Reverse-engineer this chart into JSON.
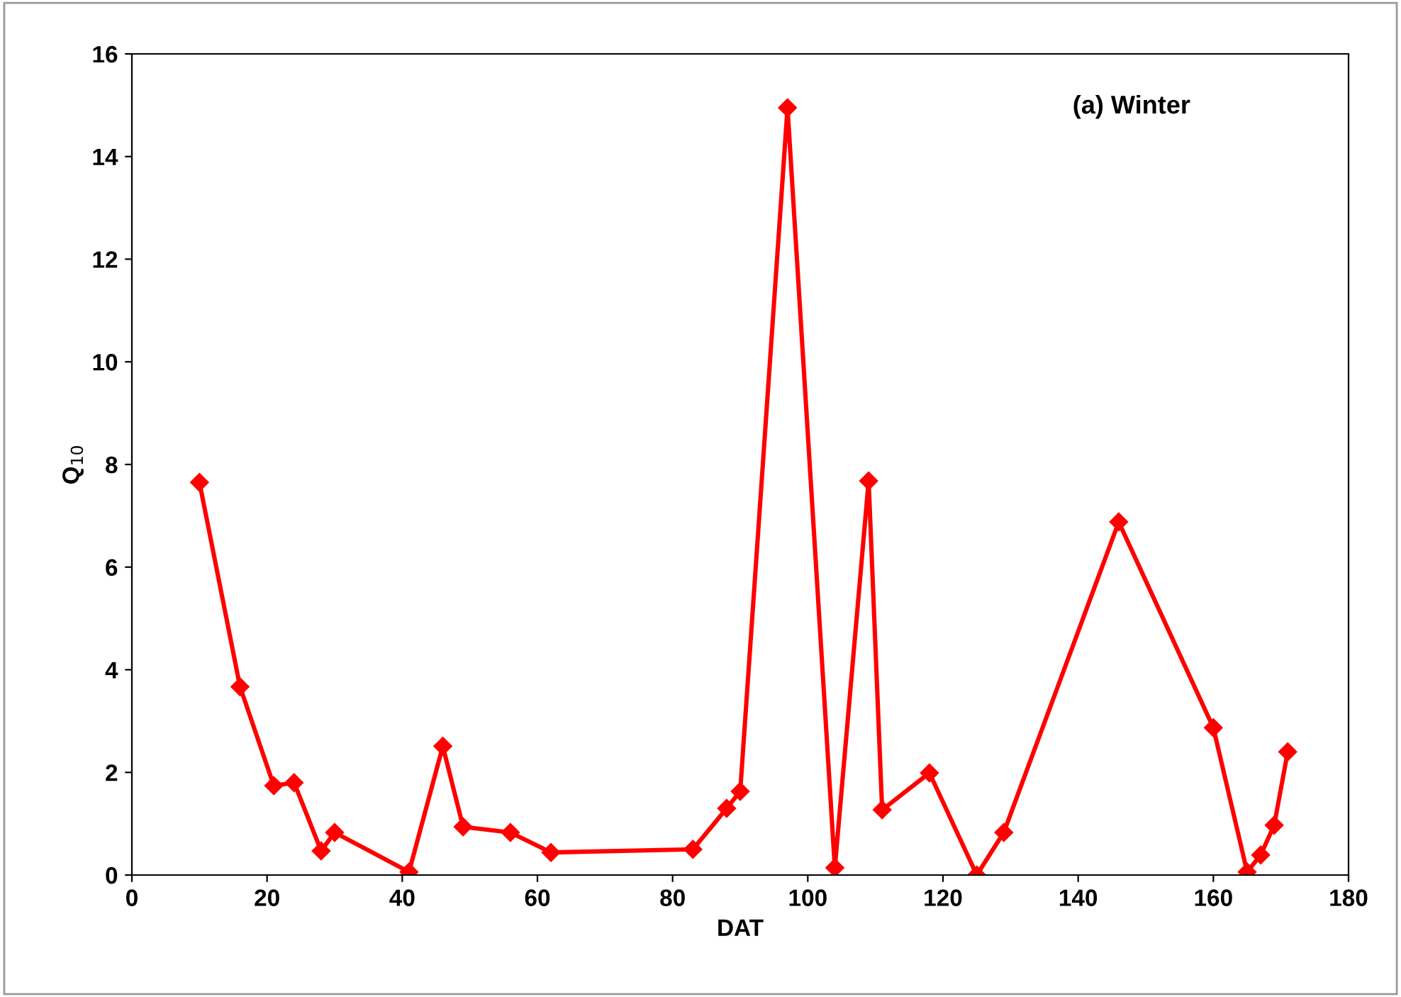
{
  "chart_data": {
    "type": "line",
    "xlabel": "DAT",
    "ylabel": "Q$_{10}$",
    "annotations": [
      "(a) Winter"
    ],
    "x": [
      10,
      16,
      21,
      24,
      28,
      30,
      41,
      46,
      49,
      56,
      62,
      83,
      88,
      90,
      97,
      104,
      109,
      111,
      118,
      125,
      129,
      146,
      160,
      165,
      167,
      169,
      171
    ],
    "series": [
      {
        "color": "#ff0000",
        "values": [
          7.65,
          3.67,
          1.74,
          1.8,
          0.47,
          0.83,
          0.06,
          2.51,
          0.94,
          0.83,
          0.44,
          0.5,
          1.3,
          1.63,
          14.95,
          0.14,
          7.68,
          1.27,
          1.99,
          0.0,
          0.83,
          6.88,
          2.87,
          0.06,
          0.39,
          0.97,
          2.4
        ]
      }
    ],
    "xlim": [
      0,
      180
    ],
    "xticks": [
      0,
      20,
      40,
      60,
      80,
      100,
      120,
      140,
      160,
      180
    ],
    "ylim": [
      0,
      16
    ],
    "yticks": [
      0,
      2,
      4,
      6,
      8,
      10,
      12,
      14,
      16
    ],
    "grid": false,
    "legend": false,
    "marker": "diamond",
    "line_style": "solid"
  }
}
